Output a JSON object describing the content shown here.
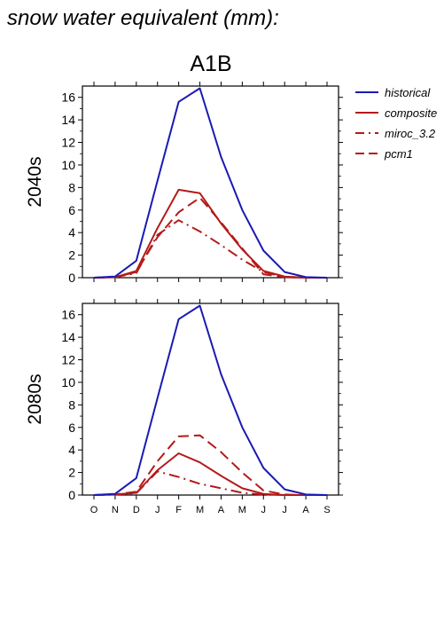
{
  "title": "snow water equivalent (mm):",
  "scenario": "A1B",
  "chart_data": [
    {
      "type": "line",
      "panel_label": "2040s",
      "categories": [
        "O",
        "N",
        "D",
        "J",
        "F",
        "M",
        "A",
        "M",
        "J",
        "J",
        "A",
        "S"
      ],
      "ylim": [
        0,
        17
      ],
      "yticks": [
        0,
        2,
        4,
        6,
        8,
        10,
        12,
        14,
        16
      ],
      "series": [
        {
          "name": "historical",
          "color": "#1a1ab4",
          "dash": "solid",
          "values": [
            0.0,
            0.1,
            1.5,
            8.6,
            15.6,
            16.8,
            10.7,
            6.0,
            2.4,
            0.5,
            0.05,
            0.0
          ]
        },
        {
          "name": "composite",
          "color": "#b41a1a",
          "dash": "solid",
          "values": [
            0.0,
            0.05,
            0.6,
            4.4,
            7.8,
            7.5,
            4.8,
            2.5,
            0.6,
            0.1,
            0.0,
            0.0
          ]
        },
        {
          "name": "miroc_3.2",
          "color": "#b41a1a",
          "dash": "dashdot",
          "values": [
            0.0,
            0.05,
            0.4,
            3.8,
            5.1,
            4.1,
            2.9,
            1.6,
            0.5,
            0.05,
            0.0,
            0.0
          ]
        },
        {
          "name": "pcm1",
          "color": "#b41a1a",
          "dash": "dash",
          "values": [
            0.0,
            0.05,
            0.5,
            3.6,
            5.8,
            7.1,
            4.9,
            2.6,
            0.3,
            0.05,
            0.0,
            0.0
          ]
        }
      ]
    },
    {
      "type": "line",
      "panel_label": "2080s",
      "categories": [
        "O",
        "N",
        "D",
        "J",
        "F",
        "M",
        "A",
        "M",
        "J",
        "J",
        "A",
        "S"
      ],
      "ylim": [
        0,
        17
      ],
      "yticks": [
        0,
        2,
        4,
        6,
        8,
        10,
        12,
        14,
        16
      ],
      "series": [
        {
          "name": "historical",
          "color": "#1a1ab4",
          "dash": "solid",
          "values": [
            0.0,
            0.1,
            1.5,
            8.6,
            15.6,
            16.8,
            10.7,
            6.0,
            2.4,
            0.5,
            0.05,
            0.0
          ]
        },
        {
          "name": "composite",
          "color": "#b41a1a",
          "dash": "solid",
          "values": [
            0.0,
            0.05,
            0.2,
            2.2,
            3.7,
            2.9,
            1.7,
            0.6,
            0.1,
            0.0,
            0.0,
            0.0
          ]
        },
        {
          "name": "miroc_3.2",
          "color": "#b41a1a",
          "dash": "dashdot",
          "values": [
            0.0,
            0.05,
            0.15,
            2.1,
            1.6,
            1.0,
            0.6,
            0.2,
            0.05,
            0.0,
            0.0,
            0.0
          ]
        },
        {
          "name": "pcm1",
          "color": "#b41a1a",
          "dash": "dash",
          "values": [
            0.0,
            0.05,
            0.3,
            3.0,
            5.2,
            5.3,
            3.8,
            2.0,
            0.4,
            0.05,
            0.0,
            0.0
          ]
        }
      ]
    }
  ],
  "legend": [
    {
      "name": "historical",
      "color": "#1a1ab4",
      "dash": "solid"
    },
    {
      "name": "composite",
      "color": "#b41a1a",
      "dash": "solid"
    },
    {
      "name": "miroc_3.2",
      "color": "#b41a1a",
      "dash": "dashdot"
    },
    {
      "name": "pcm1",
      "color": "#b41a1a",
      "dash": "dash"
    }
  ]
}
